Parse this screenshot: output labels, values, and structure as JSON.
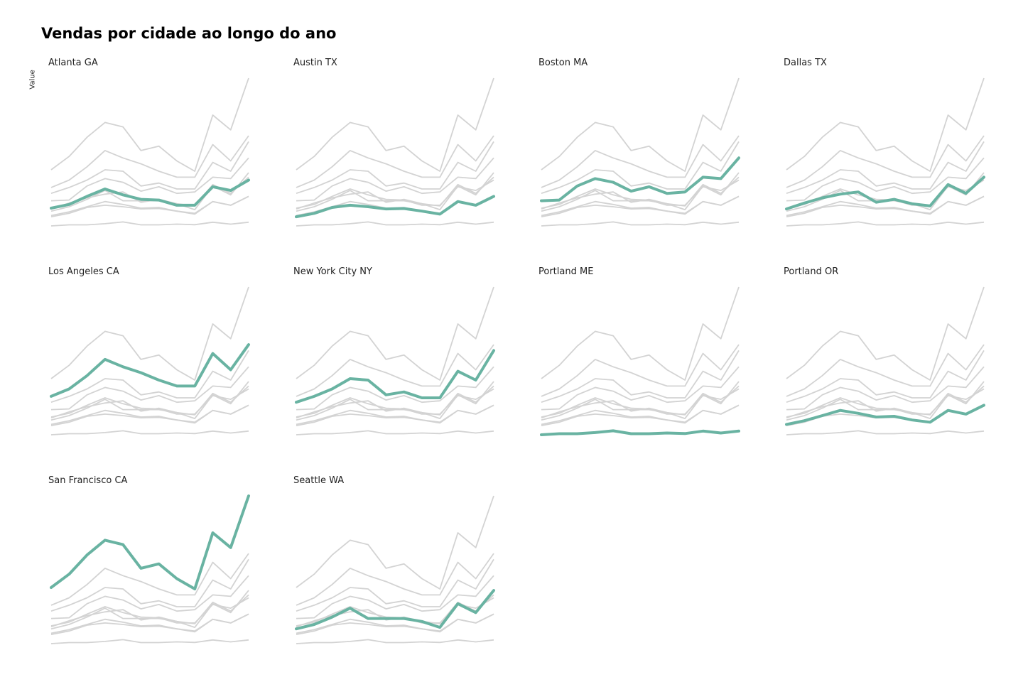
{
  "chart_data": {
    "type": "line",
    "title": "Vendas por cidade ao longo do ano",
    "xlabel": "",
    "ylabel": "Value",
    "x": [
      1,
      2,
      3,
      4,
      5,
      6,
      7,
      8,
      9,
      10,
      11,
      12
    ],
    "ylim": [
      0,
      1
    ],
    "grid": false,
    "legend": "none",
    "highlight_color": "#69b3a2",
    "background_color": "#d3d3d3",
    "series": [
      {
        "name": "Atlanta GA",
        "values": [
          0.12,
          0.145,
          0.2,
          0.25,
          0.21,
          0.18,
          0.175,
          0.14,
          0.14,
          0.265,
          0.24,
          0.31
        ]
      },
      {
        "name": "Austin TX",
        "values": [
          0.062,
          0.085,
          0.125,
          0.14,
          0.13,
          0.115,
          0.118,
          0.1,
          0.08,
          0.165,
          0.14,
          0.2
        ]
      },
      {
        "name": "Boston MA",
        "values": [
          0.17,
          0.175,
          0.27,
          0.32,
          0.295,
          0.235,
          0.265,
          0.22,
          0.23,
          0.33,
          0.32,
          0.46
        ]
      },
      {
        "name": "Dallas TX",
        "values": [
          0.115,
          0.155,
          0.19,
          0.215,
          0.23,
          0.16,
          0.18,
          0.15,
          0.135,
          0.28,
          0.22,
          0.33
        ]
      },
      {
        "name": "Los Angeles CA",
        "values": [
          0.26,
          0.31,
          0.4,
          0.51,
          0.46,
          0.42,
          0.37,
          0.33,
          0.33,
          0.55,
          0.44,
          0.61
        ]
      },
      {
        "name": "New York City NY",
        "values": [
          0.22,
          0.26,
          0.31,
          0.38,
          0.37,
          0.27,
          0.29,
          0.25,
          0.25,
          0.43,
          0.37,
          0.57
        ]
      },
      {
        "name": "Portland ME",
        "values": [
          0.0,
          0.007,
          0.007,
          0.015,
          0.027,
          0.007,
          0.007,
          0.012,
          0.008,
          0.025,
          0.012,
          0.025
        ]
      },
      {
        "name": "Portland OR",
        "values": [
          0.07,
          0.095,
          0.13,
          0.165,
          0.145,
          0.12,
          0.125,
          0.1,
          0.085,
          0.165,
          0.14,
          0.2
        ]
      },
      {
        "name": "San Francisco CA",
        "values": [
          0.38,
          0.47,
          0.6,
          0.7,
          0.67,
          0.51,
          0.54,
          0.44,
          0.37,
          0.75,
          0.65,
          1.0
        ]
      },
      {
        "name": "Seattle WA",
        "values": [
          0.1,
          0.13,
          0.18,
          0.24,
          0.17,
          0.17,
          0.17,
          0.15,
          0.11,
          0.27,
          0.21,
          0.36
        ]
      }
    ]
  }
}
